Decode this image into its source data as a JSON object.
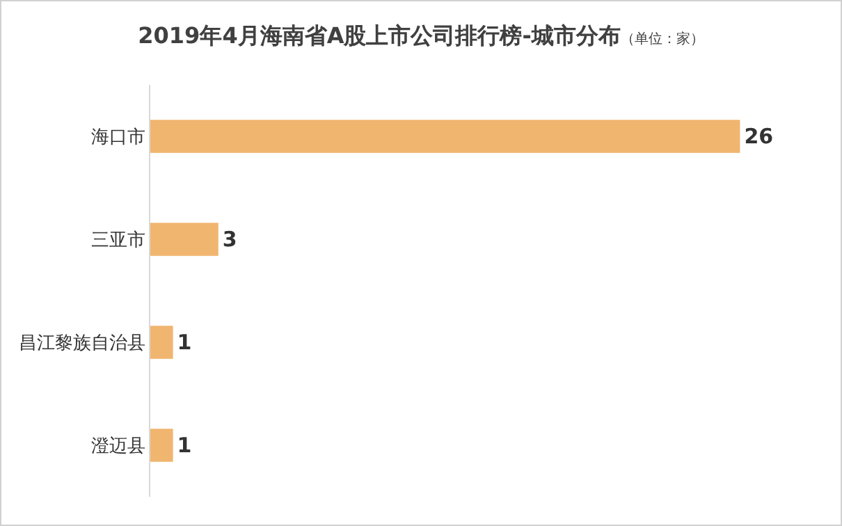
{
  "chart_data": {
    "type": "bar",
    "orientation": "horizontal",
    "title": "2019年4月海南省A股上市公司排行榜-城市分布",
    "subtitle": "（单位：家）",
    "categories": [
      "海口市",
      "三亚市",
      "昌江黎族自治县",
      "澄迈县"
    ],
    "values": [
      26,
      3,
      1,
      1
    ],
    "color": "#f0b56f",
    "data_labels": true
  }
}
